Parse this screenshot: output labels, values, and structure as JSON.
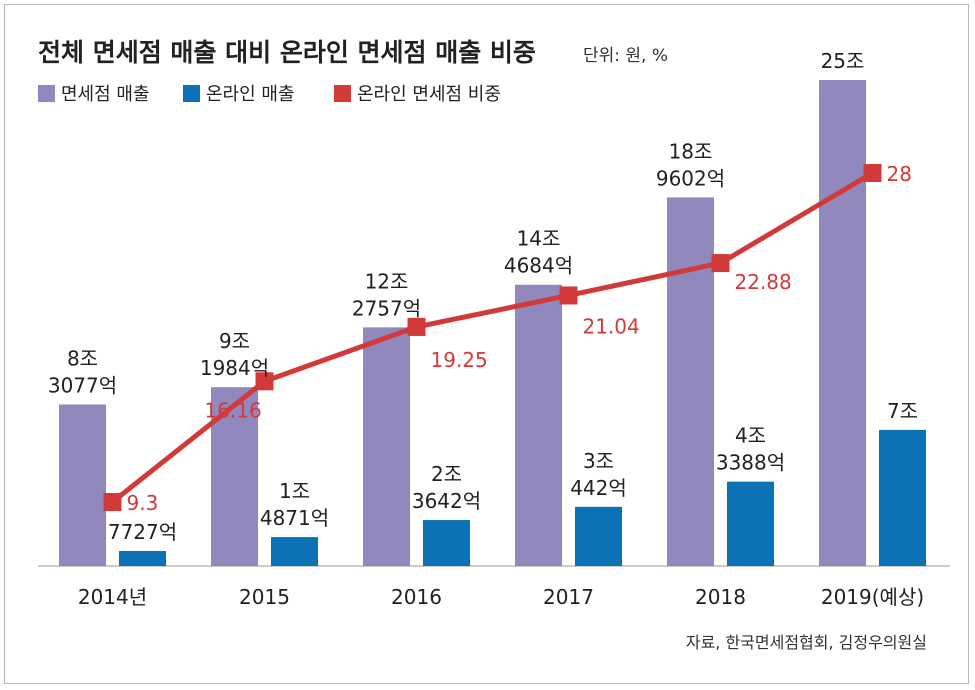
{
  "chart_data": {
    "type": "bar",
    "title": "전체 면세점 매출 대비 온라인 면세점 매출 비중",
    "unit_label": "단위: 원, %",
    "categories": [
      "2014년",
      "2015",
      "2016",
      "2017",
      "2018",
      "2019(예상)"
    ],
    "series": [
      {
        "name": "면세점 매출",
        "type": "bar",
        "color": "#9189bd",
        "values": [
          8.3077,
          9.1984,
          12.2757,
          14.4684,
          18.9602,
          25
        ],
        "labels": [
          [
            "8조",
            "3077억"
          ],
          [
            "9조",
            "1984억"
          ],
          [
            "12조",
            "2757억"
          ],
          [
            "14조",
            "4684억"
          ],
          [
            "18조",
            "9602억"
          ],
          [
            "25조"
          ]
        ]
      },
      {
        "name": "온라인 매출",
        "type": "bar",
        "color": "#0a72b5",
        "values": [
          0.7727,
          1.4871,
          2.3642,
          3.0442,
          4.3388,
          7
        ],
        "labels": [
          [
            "7727억"
          ],
          [
            "1조",
            "4871억"
          ],
          [
            "2조",
            "3642억"
          ],
          [
            "3조",
            "442억"
          ],
          [
            "4조",
            "3388억"
          ],
          [
            "7조"
          ]
        ]
      },
      {
        "name": "온라인 면세점 비중",
        "type": "line",
        "color": "#d23a3a",
        "values": [
          9.3,
          16.16,
          19.25,
          21.04,
          22.88,
          28
        ],
        "labels": [
          "9.3",
          "16.16",
          "19.25",
          "21.04",
          "22.88",
          "28"
        ]
      }
    ],
    "ylim": [
      0,
      25
    ],
    "y2lim": [
      9.3,
      28
    ],
    "legend": "top-left",
    "grid": false
  },
  "source": "자료, 한국면세점협회, 김정우의원실"
}
